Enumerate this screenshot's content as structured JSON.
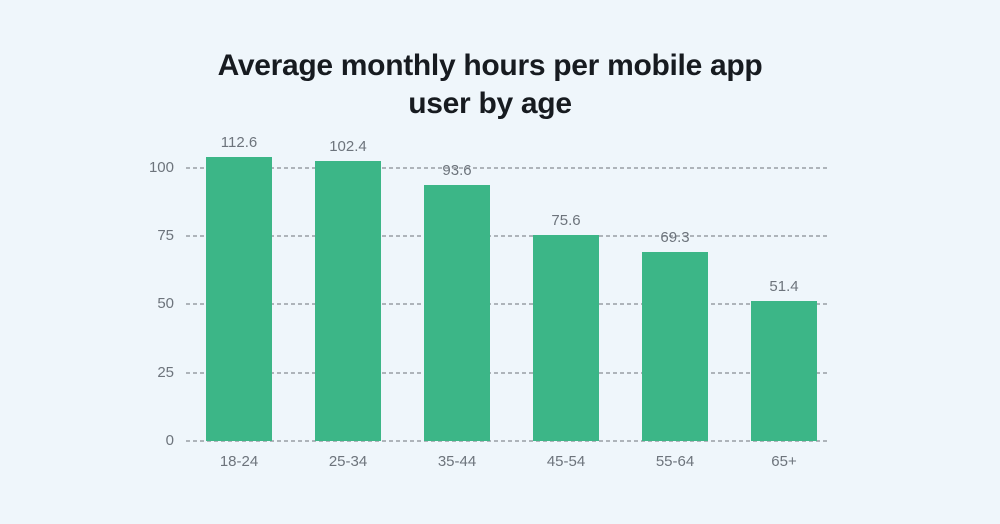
{
  "title_lines": [
    "Average monthly hours per mobile app",
    "user by age"
  ],
  "colors": {
    "background": "#eff6fb",
    "bar": "#3cb687",
    "grid": "#aeb4ba",
    "title_text": "#171b20",
    "axis_text": "#6d747c"
  },
  "chart_data": {
    "type": "bar",
    "title": "Average monthly hours per mobile app user by age",
    "categories": [
      "18-24",
      "25-34",
      "35-44",
      "45-54",
      "55-64",
      "65+"
    ],
    "values": [
      112.6,
      102.4,
      93.6,
      75.6,
      69.3,
      51.4
    ],
    "xlabel": "",
    "ylabel": "",
    "yticks": [
      0,
      25,
      50,
      75,
      100
    ],
    "ylim": [
      0,
      104
    ],
    "grid": "horizontal-dashed",
    "legend": "none",
    "bar_color": "#3cb687",
    "value_label_position": "above-bar",
    "first_bar_clipped_at_plot_top": true
  }
}
